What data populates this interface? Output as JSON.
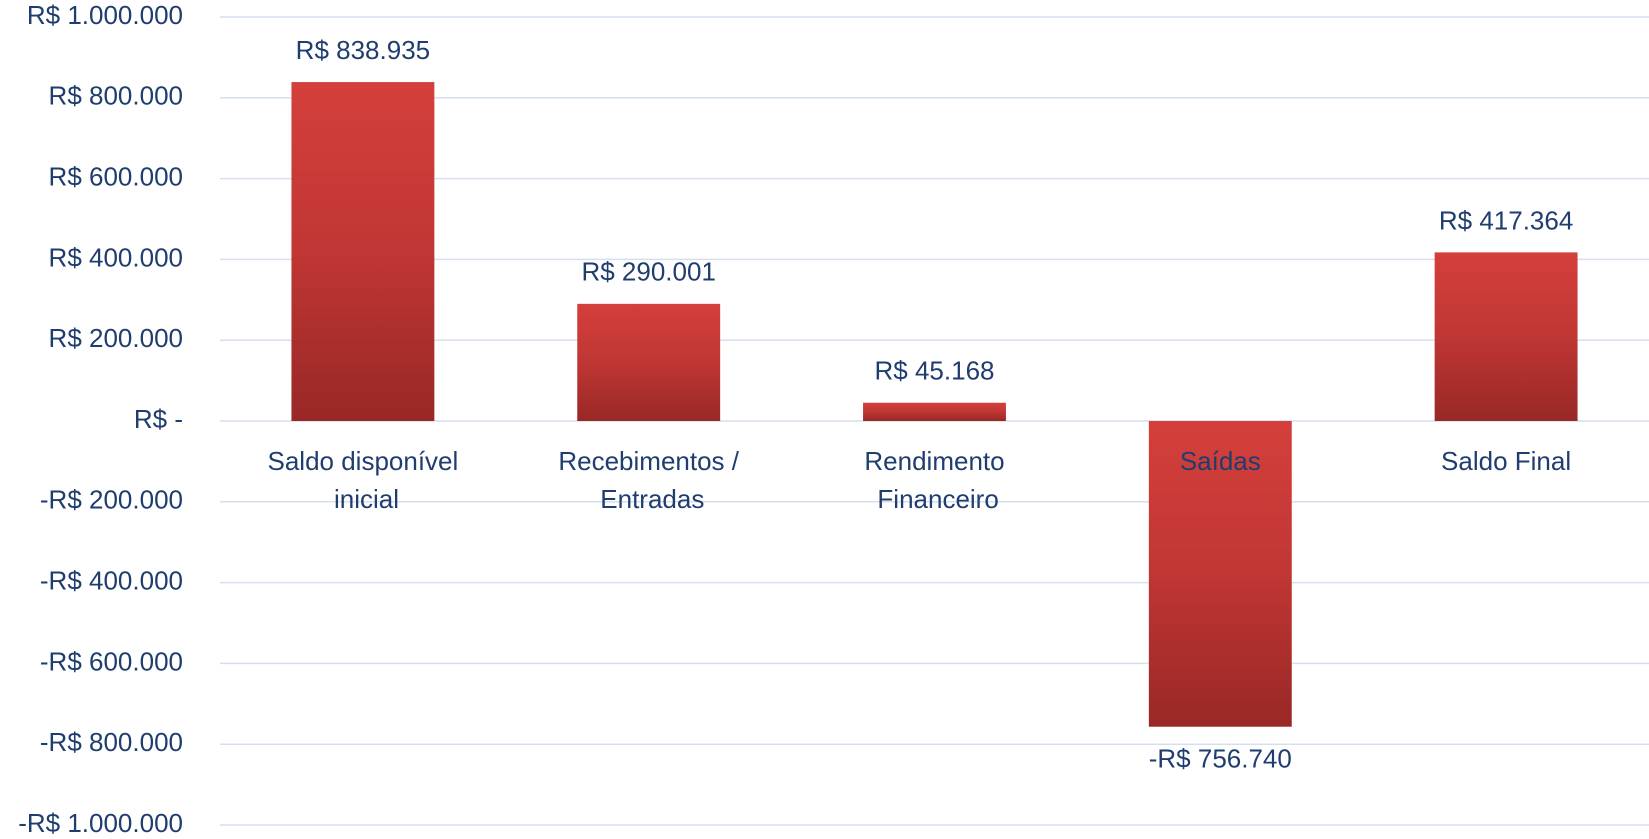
{
  "chart_data": {
    "type": "bar",
    "categories": [
      "Saldo disponível inicial",
      "Recebimentos / Entradas",
      "Rendimento Financeiro",
      "Saídas",
      "Saldo Final"
    ],
    "values": [
      838935,
      290001,
      45168,
      -756740,
      417364
    ],
    "value_labels": [
      "R$ 838.935",
      "R$ 290.001",
      "R$ 45.168",
      "-R$ 756.740",
      "R$ 417.364"
    ],
    "color": "#c9383a",
    "ylim": [
      -1000000,
      1000000
    ],
    "yticks": [
      {
        "value": 1000000,
        "label": "R$ 1.000.000"
      },
      {
        "value": 800000,
        "label": "R$ 800.000"
      },
      {
        "value": 600000,
        "label": "R$ 600.000"
      },
      {
        "value": 400000,
        "label": "R$ 400.000"
      },
      {
        "value": 200000,
        "label": "R$ 200.000"
      },
      {
        "value": 0,
        "label": "R$ -"
      },
      {
        "value": -200000,
        "label": "-R$ 200.000"
      },
      {
        "value": -400000,
        "label": "-R$ 400.000"
      },
      {
        "value": -600000,
        "label": "-R$ 600.000"
      },
      {
        "value": -800000,
        "label": "-R$ 800.000"
      },
      {
        "value": -1000000,
        "label": "-R$ 1.000.000"
      }
    ],
    "grid": true
  }
}
